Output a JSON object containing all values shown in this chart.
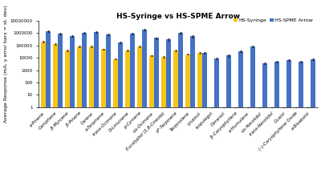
{
  "title": "HS-Syringe vs HS-SPME Arrow",
  "ylabel": "Average Response (mA, y error bars = st. dev)",
  "legend": [
    "HS-Syringe",
    "HS-SPME Arrow"
  ],
  "categories": [
    "α-Pinene",
    "Camphene",
    "β-Myrcene",
    "β-Pinene",
    "Carene",
    "α-Terpinene",
    "trans-Ocimene",
    "D-Limonene",
    "p-Cymene",
    "cis-Ocimene",
    "Eucalyptol (1,8-Cineole)",
    "p*-Terpinene",
    "Terpinolene",
    "Linalool",
    "Isopulegol",
    "Geraniol",
    "β-Caryophyllene",
    "α-Humulene",
    "cis-Nerolidol",
    "trans-Nerolidol",
    "Guaiol",
    "(–)-Caryophyllene Oxide",
    "α-Bisabolol"
  ],
  "hs_syringe": [
    200000,
    130000,
    40000,
    80000,
    80000,
    50000,
    8000,
    40000,
    80000,
    15000,
    12000,
    40000,
    20000,
    25000,
    1,
    1,
    1,
    1,
    1,
    1,
    1,
    1,
    1
  ],
  "hs_spme": [
    1500000,
    950000,
    600000,
    1100000,
    1200000,
    800000,
    170000,
    900000,
    2000000,
    400000,
    300000,
    1000000,
    550000,
    25000,
    9000,
    15000,
    35000,
    80000,
    3500,
    5000,
    7000,
    5000,
    8000
  ],
  "hs_syringe_err": [
    20000,
    15000,
    5000,
    10000,
    10000,
    5000,
    800,
    5000,
    10000,
    2000,
    1500,
    5000,
    2000,
    2500,
    0,
    0,
    0,
    0,
    0,
    0,
    0,
    0,
    0
  ],
  "hs_spme_err": [
    250000,
    120000,
    90000,
    180000,
    200000,
    110000,
    25000,
    110000,
    350000,
    60000,
    45000,
    140000,
    90000,
    3500,
    1200,
    2500,
    5000,
    12000,
    500,
    700,
    900,
    700,
    1200
  ],
  "bar_color_syringe": "#F5C518",
  "bar_color_spme": "#4472C4",
  "background_color": "#FFFFFF",
  "title_fontsize": 6.5,
  "label_fontsize": 4.5,
  "tick_fontsize": 4.0,
  "legend_fontsize": 4.5
}
